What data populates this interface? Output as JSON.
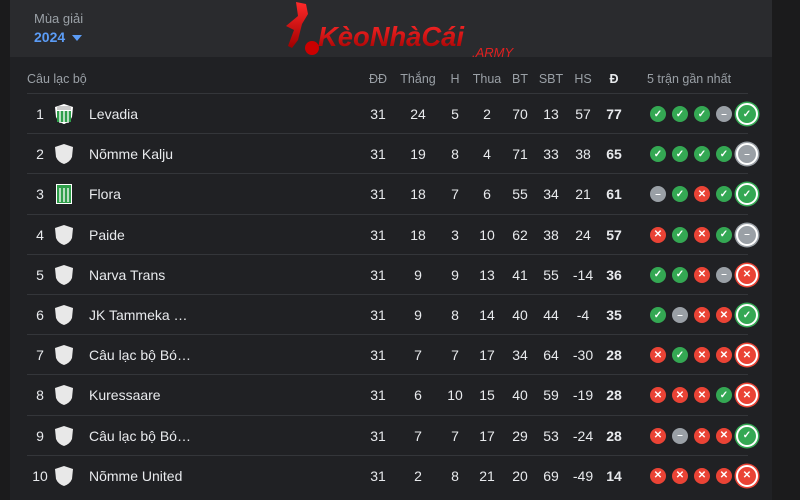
{
  "header": {
    "season_label": "Mùa giải",
    "season_value": "2024",
    "logo_text": "KèoNhàCái",
    "logo_sub": ".ARMY"
  },
  "colors": {
    "win": "#34a853",
    "loss": "#ea4335",
    "draw": "#9aa0a6",
    "accent": "#5b9cf6"
  },
  "columns": {
    "club": "Câu lạc bộ",
    "played": "ĐĐ",
    "won": "Thắng",
    "drawn": "H",
    "lost": "Thua",
    "gf": "BT",
    "ga": "SBT",
    "gd": "HS",
    "pts": "Đ",
    "form": "5 trận gần nhất"
  },
  "rows": [
    {
      "rank": "1",
      "club": "Levadia",
      "badge": "levadia",
      "played": "31",
      "won": "24",
      "drawn": "5",
      "lost": "2",
      "gf": "70",
      "ga": "13",
      "gd": "57",
      "pts": "77",
      "form": [
        "W",
        "W",
        "W",
        "D",
        "W"
      ]
    },
    {
      "rank": "2",
      "club": "Nõmme Kalju",
      "badge": "generic",
      "played": "31",
      "won": "19",
      "drawn": "8",
      "lost": "4",
      "gf": "71",
      "ga": "33",
      "gd": "38",
      "pts": "65",
      "form": [
        "W",
        "W",
        "W",
        "W",
        "D"
      ]
    },
    {
      "rank": "3",
      "club": "Flora",
      "badge": "flora",
      "played": "31",
      "won": "18",
      "drawn": "7",
      "lost": "6",
      "gf": "55",
      "ga": "34",
      "gd": "21",
      "pts": "61",
      "form": [
        "D",
        "W",
        "L",
        "W",
        "W"
      ]
    },
    {
      "rank": "4",
      "club": "Paide",
      "badge": "generic",
      "played": "31",
      "won": "18",
      "drawn": "3",
      "lost": "10",
      "gf": "62",
      "ga": "38",
      "gd": "24",
      "pts": "57",
      "form": [
        "L",
        "W",
        "L",
        "W",
        "D"
      ]
    },
    {
      "rank": "5",
      "club": "Narva Trans",
      "badge": "generic",
      "played": "31",
      "won": "9",
      "drawn": "9",
      "lost": "13",
      "gf": "41",
      "ga": "55",
      "gd": "-14",
      "pts": "36",
      "form": [
        "W",
        "W",
        "L",
        "D",
        "L"
      ]
    },
    {
      "rank": "6",
      "club": "JK Tammeka …",
      "badge": "generic",
      "played": "31",
      "won": "9",
      "drawn": "8",
      "lost": "14",
      "gf": "40",
      "ga": "44",
      "gd": "-4",
      "pts": "35",
      "form": [
        "W",
        "D",
        "L",
        "L",
        "W"
      ]
    },
    {
      "rank": "7",
      "club": "Câu lạc bộ Bó…",
      "badge": "generic",
      "played": "31",
      "won": "7",
      "drawn": "7",
      "lost": "17",
      "gf": "34",
      "ga": "64",
      "gd": "-30",
      "pts": "28",
      "form": [
        "L",
        "W",
        "L",
        "L",
        "L"
      ]
    },
    {
      "rank": "8",
      "club": "Kuressaare",
      "badge": "generic",
      "played": "31",
      "won": "6",
      "drawn": "10",
      "lost": "15",
      "gf": "40",
      "ga": "59",
      "gd": "-19",
      "pts": "28",
      "form": [
        "L",
        "L",
        "L",
        "W",
        "L"
      ]
    },
    {
      "rank": "9",
      "club": "Câu lạc bộ Bó…",
      "badge": "generic",
      "played": "31",
      "won": "7",
      "drawn": "7",
      "lost": "17",
      "gf": "29",
      "ga": "53",
      "gd": "-24",
      "pts": "28",
      "form": [
        "L",
        "D",
        "L",
        "L",
        "W"
      ]
    },
    {
      "rank": "10",
      "club": "Nõmme United",
      "badge": "generic",
      "played": "31",
      "won": "2",
      "drawn": "8",
      "lost": "21",
      "gf": "20",
      "ga": "69",
      "gd": "-49",
      "pts": "14",
      "form": [
        "L",
        "L",
        "L",
        "L",
        "L"
      ]
    }
  ]
}
